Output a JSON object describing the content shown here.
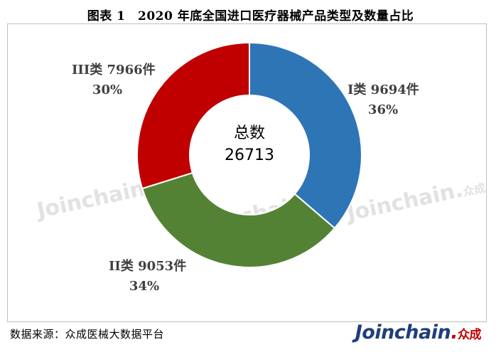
{
  "title": "图表 1　2020 年底全国进口医疗器械产品类型及数量占比",
  "source": "数据来源：众成医械大数据平台",
  "brand": {
    "name": "Joinchain",
    "dot": ".",
    "cn": "众成"
  },
  "watermark": {
    "text": "Joinchain",
    "dot": ".",
    "cn": "众成"
  },
  "colors": {
    "class_i": "#2e75b6",
    "class_ii": "#548235",
    "class_iii": "#c00000",
    "border": "#bfbfbf"
  },
  "chart_data": {
    "type": "pie",
    "donut": true,
    "center_label": "总数",
    "total": 26713,
    "slices": [
      {
        "name": "I类",
        "value": 9694,
        "unit": "件",
        "percent": "36%"
      },
      {
        "name": "II类",
        "value": 9053,
        "unit": "件",
        "percent": "34%"
      },
      {
        "name": "III类",
        "value": 7966,
        "unit": "件",
        "percent": "30%"
      }
    ]
  }
}
